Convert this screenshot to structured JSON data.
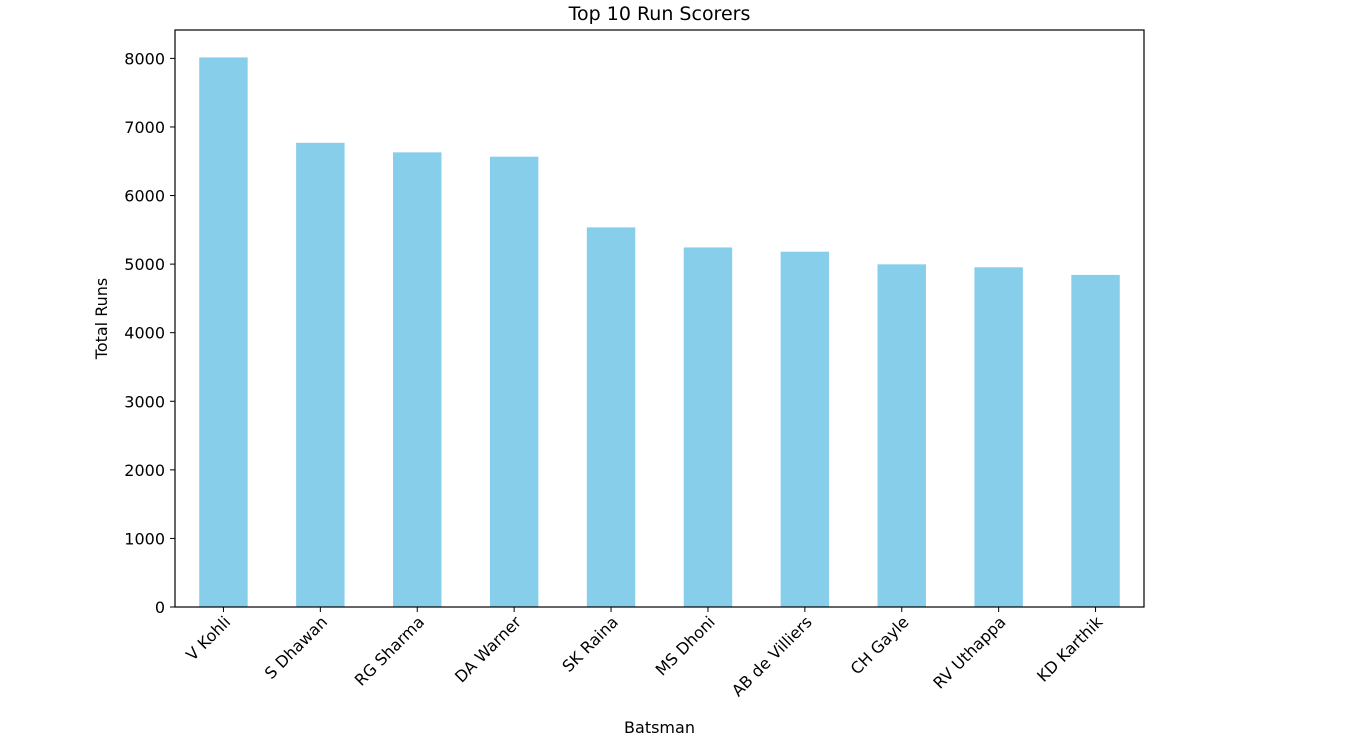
{
  "chart_data": {
    "type": "bar",
    "title": "Top 10 Run Scorers",
    "xlabel": "Batsman",
    "ylabel": "Total Runs",
    "categories": [
      "V Kohli",
      "S Dhawan",
      "RG Sharma",
      "DA Warner",
      "SK Raina",
      "MS Dhoni",
      "AB de Villiers",
      "CH Gayle",
      "RV Uthappa",
      "KD Karthik"
    ],
    "values": [
      8014,
      6769,
      6630,
      6567,
      5536,
      5243,
      5181,
      4997,
      4954,
      4843
    ],
    "ylim": [
      0,
      8414
    ],
    "yticks": [
      0,
      1000,
      2000,
      3000,
      4000,
      5000,
      6000,
      7000,
      8000
    ],
    "bar_color": "#87ceeb",
    "grid": false,
    "legend": "none"
  }
}
